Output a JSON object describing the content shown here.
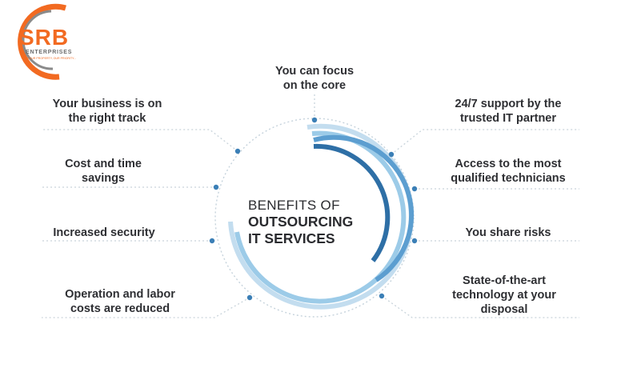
{
  "logo": {
    "brand": "SRB",
    "subtitle": "ENTERPRISES",
    "tagline": "YOUR PROPERTY, OUR PRIORITY...",
    "colors": {
      "orange": "#f26a21",
      "gray": "#6b6b6b"
    }
  },
  "center": {
    "line1": "BENEFITS OF",
    "line2": "OUTSOURCING",
    "line3": "IT SERVICES"
  },
  "benefits_left": [
    {
      "line1": "Your business is on",
      "line2": "the right track"
    },
    {
      "line1": "Cost and time",
      "line2": "savings"
    },
    {
      "line1": "Increased security"
    },
    {
      "line1": "Operation and labor",
      "line2": "costs are reduced"
    }
  ],
  "benefits_top": {
    "line1": "You can focus",
    "line2": "on the core"
  },
  "benefits_right": [
    {
      "line1": "24/7 support by the",
      "line2": "trusted IT partner"
    },
    {
      "line1": "Access to the most",
      "line2": "qualified technicians"
    },
    {
      "line1": "You share risks"
    },
    {
      "line1": "State-of-the-art",
      "line2": "technology at your",
      "line3": "disposal"
    }
  ],
  "colors": {
    "arc_dark": "#2b6fa8",
    "arc_mid": "#4d93c8",
    "arc_light": "#a7cfe8",
    "dot": "#3b7fb6",
    "dotted_line": "#c9d4db",
    "text": "#2e2f33"
  }
}
